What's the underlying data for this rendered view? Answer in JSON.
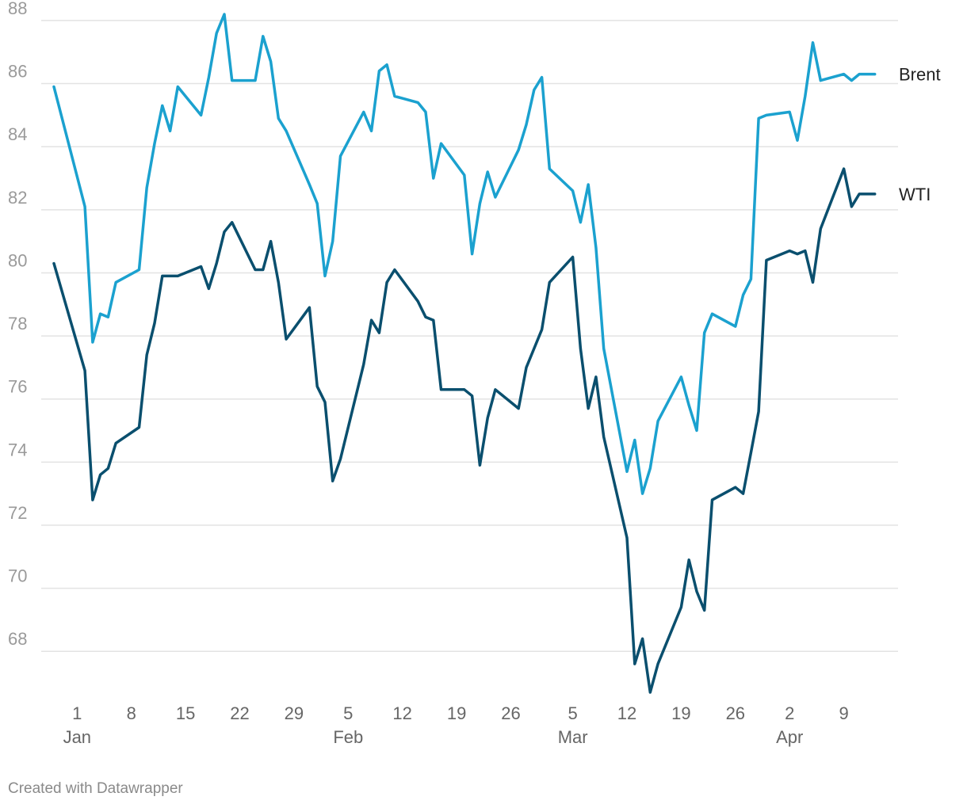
{
  "credit": "Created with Datawrapper",
  "chart_data": {
    "type": "line",
    "title": "",
    "xlabel": "",
    "ylabel": "",
    "ylim": [
      66.8,
      88.4
    ],
    "yticks": [
      68,
      70,
      72,
      74,
      76,
      78,
      80,
      82,
      84,
      86,
      88
    ],
    "xlim": [
      "2019-12-29",
      "2020-04-16"
    ],
    "xticks": [
      {
        "date": "2020-01-01",
        "day": "1",
        "month": "Jan"
      },
      {
        "date": "2020-01-08",
        "day": "8",
        "month": ""
      },
      {
        "date": "2020-01-15",
        "day": "15",
        "month": ""
      },
      {
        "date": "2020-01-22",
        "day": "22",
        "month": ""
      },
      {
        "date": "2020-01-29",
        "day": "29",
        "month": ""
      },
      {
        "date": "2020-02-05",
        "day": "5",
        "month": "Feb"
      },
      {
        "date": "2020-02-12",
        "day": "12",
        "month": ""
      },
      {
        "date": "2020-02-19",
        "day": "19",
        "month": ""
      },
      {
        "date": "2020-02-26",
        "day": "26",
        "month": ""
      },
      {
        "date": "2020-03-05",
        "day": "5",
        "month": "Mar"
      },
      {
        "date": "2020-03-12",
        "day": "12",
        "month": ""
      },
      {
        "date": "2020-03-19",
        "day": "19",
        "month": ""
      },
      {
        "date": "2020-03-26",
        "day": "26",
        "month": ""
      },
      {
        "date": "2020-04-02",
        "day": "2",
        "month": "Apr"
      },
      {
        "date": "2020-04-09",
        "day": "9",
        "month": ""
      }
    ],
    "grid": true,
    "legend": "direct labels at line ends",
    "series": [
      {
        "name": "Brent",
        "color": "#1ba1cf",
        "x": [
          "2019-12-29",
          "2020-01-02",
          "2020-01-03",
          "2020-01-04",
          "2020-01-05",
          "2020-01-06",
          "2020-01-09",
          "2020-01-10",
          "2020-01-11",
          "2020-01-12",
          "2020-01-13",
          "2020-01-14",
          "2020-01-17",
          "2020-01-18",
          "2020-01-19",
          "2020-01-20",
          "2020-01-21",
          "2020-01-24",
          "2020-01-25",
          "2020-01-26",
          "2020-01-27",
          "2020-01-28",
          "2020-01-31",
          "2020-02-01",
          "2020-02-02",
          "2020-02-03",
          "2020-02-04",
          "2020-02-07",
          "2020-02-08",
          "2020-02-09",
          "2020-02-10",
          "2020-02-11",
          "2020-02-14",
          "2020-02-15",
          "2020-02-16",
          "2020-02-17",
          "2020-02-20",
          "2020-02-21",
          "2020-02-22",
          "2020-02-23",
          "2020-02-24",
          "2020-02-27",
          "2020-02-28",
          "2020-02-29",
          "2020-03-01",
          "2020-03-02",
          "2020-03-05",
          "2020-03-06",
          "2020-03-07",
          "2020-03-08",
          "2020-03-09",
          "2020-03-12",
          "2020-03-13",
          "2020-03-14",
          "2020-03-15",
          "2020-03-16",
          "2020-03-19",
          "2020-03-20",
          "2020-03-21",
          "2020-03-22",
          "2020-03-23",
          "2020-03-26",
          "2020-03-27",
          "2020-03-28",
          "2020-03-29",
          "2020-03-30",
          "2020-04-02",
          "2020-04-03",
          "2020-04-04",
          "2020-04-05",
          "2020-04-06",
          "2020-04-09",
          "2020-04-10",
          "2020-04-11",
          "2020-04-12",
          "2020-04-13"
        ],
        "values": [
          85.9,
          82.1,
          77.8,
          78.7,
          78.6,
          79.7,
          80.1,
          82.7,
          84.1,
          85.3,
          84.5,
          85.9,
          85.0,
          86.2,
          87.6,
          88.2,
          86.1,
          86.1,
          87.5,
          86.7,
          84.9,
          84.5,
          82.8,
          82.2,
          79.9,
          81.0,
          83.7,
          85.1,
          84.5,
          86.4,
          86.6,
          85.6,
          85.4,
          85.1,
          83.0,
          84.1,
          83.1,
          80.6,
          82.2,
          83.2,
          82.4,
          83.9,
          84.7,
          85.8,
          86.2,
          83.3,
          82.6,
          81.6,
          82.8,
          80.8,
          77.6,
          73.7,
          74.7,
          73.0,
          73.8,
          75.3,
          76.7,
          75.8,
          75.0,
          78.1,
          78.7,
          78.3,
          79.3,
          79.8,
          84.9,
          85.0,
          85.1,
          84.2,
          85.6,
          87.3,
          86.1,
          86.3,
          86.1,
          86.3,
          86.3,
          86.3
        ]
      },
      {
        "name": "WTI",
        "color": "#0a4f6e",
        "x": [
          "2019-12-29",
          "2020-01-02",
          "2020-01-03",
          "2020-01-04",
          "2020-01-05",
          "2020-01-06",
          "2020-01-09",
          "2020-01-10",
          "2020-01-11",
          "2020-01-12",
          "2020-01-13",
          "2020-01-14",
          "2020-01-17",
          "2020-01-18",
          "2020-01-19",
          "2020-01-20",
          "2020-01-21",
          "2020-01-24",
          "2020-01-25",
          "2020-01-26",
          "2020-01-27",
          "2020-01-28",
          "2020-01-31",
          "2020-02-01",
          "2020-02-02",
          "2020-02-03",
          "2020-02-04",
          "2020-02-07",
          "2020-02-08",
          "2020-02-09",
          "2020-02-10",
          "2020-02-11",
          "2020-02-14",
          "2020-02-15",
          "2020-02-16",
          "2020-02-17",
          "2020-02-20",
          "2020-02-21",
          "2020-02-22",
          "2020-02-23",
          "2020-02-24",
          "2020-02-27",
          "2020-02-28",
          "2020-02-29",
          "2020-03-01",
          "2020-03-02",
          "2020-03-05",
          "2020-03-06",
          "2020-03-07",
          "2020-03-08",
          "2020-03-09",
          "2020-03-12",
          "2020-03-13",
          "2020-03-14",
          "2020-03-15",
          "2020-03-16",
          "2020-03-19",
          "2020-03-20",
          "2020-03-21",
          "2020-03-22",
          "2020-03-23",
          "2020-03-26",
          "2020-03-27",
          "2020-03-28",
          "2020-03-29",
          "2020-03-30",
          "2020-04-02",
          "2020-04-03",
          "2020-04-04",
          "2020-04-05",
          "2020-04-06",
          "2020-04-09",
          "2020-04-10",
          "2020-04-11",
          "2020-04-12",
          "2020-04-13"
        ],
        "values": [
          80.3,
          76.9,
          72.8,
          73.6,
          73.8,
          74.6,
          75.1,
          77.4,
          78.4,
          79.9,
          79.9,
          79.9,
          80.2,
          79.5,
          80.3,
          81.3,
          81.6,
          80.1,
          80.1,
          81.0,
          79.7,
          77.9,
          78.9,
          76.4,
          75.9,
          73.4,
          74.1,
          77.1,
          78.5,
          78.1,
          79.7,
          80.1,
          79.1,
          78.6,
          78.5,
          76.3,
          76.3,
          76.1,
          73.9,
          75.4,
          76.3,
          75.7,
          77.0,
          77.6,
          78.2,
          79.7,
          80.5,
          77.6,
          75.7,
          76.7,
          74.8,
          71.6,
          67.6,
          68.4,
          66.7,
          67.6,
          69.4,
          70.9,
          69.9,
          69.3,
          72.8,
          73.2,
          73.0,
          74.3,
          75.6,
          80.4,
          80.7,
          80.6,
          80.7,
          79.7,
          81.4,
          83.3,
          82.1,
          82.5,
          82.5,
          82.5
        ]
      }
    ]
  }
}
